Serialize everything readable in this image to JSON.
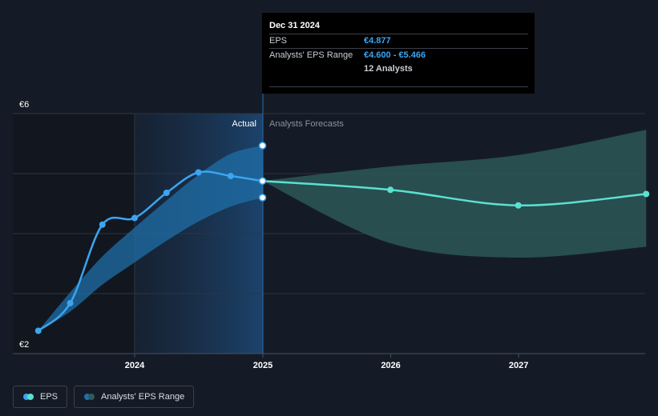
{
  "chart_data": {
    "type": "line",
    "y_axis": {
      "min": 2,
      "max": 6,
      "tick_labels": [
        {
          "value": 6,
          "label": "€6"
        },
        {
          "value": 2,
          "label": "€2"
        }
      ]
    },
    "x_axis": {
      "ticks": [
        "2024",
        "2025",
        "2026",
        "2027"
      ]
    },
    "region_labels": {
      "actual": "Actual",
      "forecast": "Analysts Forecasts"
    },
    "eps_actual": [
      {
        "date": "2023-04-01",
        "value": 2.38
      },
      {
        "date": "2023-07-01",
        "value": 2.84
      },
      {
        "date": "2023-10-01",
        "value": 4.15
      },
      {
        "date": "2024-01-01",
        "value": 4.26
      },
      {
        "date": "2024-04-01",
        "value": 4.68
      },
      {
        "date": "2024-07-01",
        "value": 5.02
      },
      {
        "date": "2024-10-01",
        "value": 4.96
      },
      {
        "date": "2024-12-31",
        "value": 4.877
      }
    ],
    "eps_forecast": [
      {
        "date": "2024-12-31",
        "value": 4.877
      },
      {
        "date": "2025-12-31",
        "value": 4.73
      },
      {
        "date": "2026-12-31",
        "value": 4.47
      },
      {
        "date": "2027-12-31",
        "value": 4.66
      }
    ],
    "range_actual": {
      "dates": [
        "2023-04-01",
        "2023-07-01",
        "2023-10-01",
        "2024-01-01",
        "2024-04-01",
        "2024-07-01",
        "2024-10-01",
        "2024-12-31"
      ],
      "high": [
        2.38,
        3.02,
        3.62,
        4.1,
        4.55,
        4.98,
        5.33,
        5.466
      ],
      "low": [
        2.38,
        2.7,
        3.15,
        3.52,
        3.88,
        4.2,
        4.45,
        4.6
      ]
    },
    "range_forecast": {
      "dates": [
        "2024-12-31",
        "2025-12-31",
        "2026-12-31",
        "2027-12-31"
      ],
      "high": [
        4.877,
        5.12,
        5.31,
        5.73
      ],
      "low": [
        4.877,
        3.84,
        3.6,
        3.78
      ]
    },
    "tooltip": {
      "date": "Dec 31 2024",
      "eps_label": "EPS",
      "eps_value": "€4.877",
      "range_label": "Analysts' EPS Range",
      "range_value": "€4.600 - €5.466",
      "analysts": "12 Analysts"
    },
    "legend": [
      {
        "label": "EPS",
        "colors": [
          "#3ba5f0",
          "#5ce0d0"
        ]
      },
      {
        "label": "Analysts' EPS Range",
        "colors": [
          "#1f6fa8",
          "#2d5b5a"
        ]
      }
    ],
    "colors": {
      "eps_actual": "#3ba5f0",
      "eps_forecast": "#5ce0d0",
      "range_actual": "#1f6fa8",
      "range_forecast": "#2d5b5a",
      "grid": "#2e3440",
      "axis_text": "#ffffff",
      "highlight_band": "#1b3a5c"
    },
    "grid": true
  }
}
